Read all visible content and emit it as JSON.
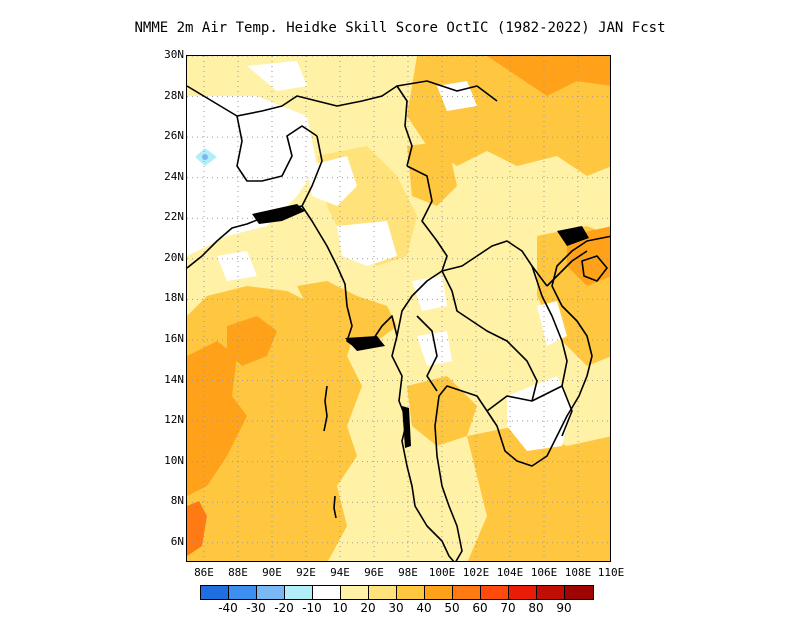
{
  "title": "NMME  2m Air Temp. Heidke Skill Score OctIC (1982-2022) JAN Fcst",
  "map": {
    "lat_labels": [
      "30N",
      "28N",
      "26N",
      "24N",
      "22N",
      "20N",
      "18N",
      "16N",
      "14N",
      "12N",
      "10N",
      "8N",
      "6N"
    ],
    "lon_labels": [
      "86E",
      "88E",
      "90E",
      "92E",
      "94E",
      "96E",
      "98E",
      "100E",
      "102E",
      "104E",
      "106E",
      "108E",
      "110E"
    ],
    "lat_range": [
      5,
      30
    ],
    "lon_range": [
      85,
      110
    ],
    "grid": "dotted"
  },
  "colorbar": {
    "colors": [
      "#1f6fe0",
      "#3c8ff0",
      "#7ab8f5",
      "#b2eef8",
      "#ffffff",
      "#fff1a6",
      "#ffe27a",
      "#ffc640",
      "#ffa21a",
      "#ff7a12",
      "#ff4a0c",
      "#e81c08",
      "#c00e04",
      "#9e0402"
    ],
    "labels": [
      "-40",
      "-30",
      "-20",
      "-10",
      "10",
      "20",
      "30",
      "40",
      "50",
      "60",
      "70",
      "80",
      "90"
    ]
  },
  "fill_colors": {
    "pale_yellow": "#fff1a6",
    "yellow": "#ffe27a",
    "light_orange": "#ffc640",
    "orange": "#ffa21a",
    "dark_orange": "#ff7a12",
    "cyan": "#b2eef8"
  }
}
